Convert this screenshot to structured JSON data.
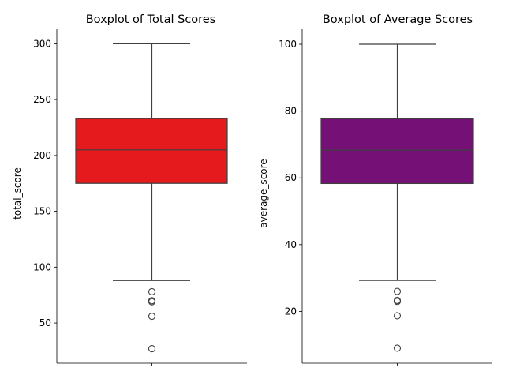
{
  "chart_data": [
    {
      "type": "box",
      "title": "Boxplot of Total Scores",
      "xlabel": "",
      "ylabel": "total_score",
      "ylim": [
        14,
        313
      ],
      "yticks": [
        50,
        100,
        150,
        200,
        250,
        300
      ],
      "color": "#e41a1c",
      "box": {
        "whisker_low": 88,
        "q1": 175,
        "median": 205,
        "q3": 233,
        "whisker_high": 300
      },
      "outliers": [
        78,
        70,
        69,
        56,
        27
      ]
    },
    {
      "type": "box",
      "title": "Boxplot of Average Scores",
      "xlabel": "",
      "ylabel": "average_score",
      "ylim": [
        4.5,
        104.5
      ],
      "yticks": [
        20,
        40,
        60,
        80,
        100
      ],
      "color": "#751077",
      "box": {
        "whisker_low": 29.3,
        "q1": 58.3,
        "median": 68.3,
        "q3": 77.7,
        "whisker_high": 100
      },
      "outliers": [
        26,
        23.3,
        23,
        18.7,
        9
      ]
    }
  ]
}
